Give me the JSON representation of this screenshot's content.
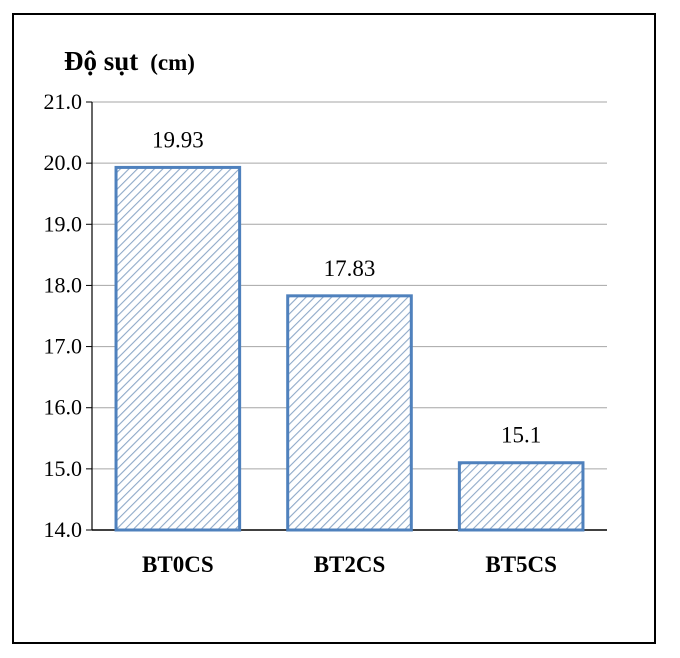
{
  "chart_data": {
    "type": "bar",
    "title": "Độ sụt",
    "title_unit": "(cm)",
    "categories": [
      "BT0CS",
      "BT2CS",
      "BT5CS"
    ],
    "values": [
      19.93,
      17.83,
      15.1
    ],
    "data_labels": [
      "19.93",
      "17.83",
      "15.1"
    ],
    "ylim": [
      14.0,
      21.0
    ],
    "yticks": [
      "14.0",
      "15.0",
      "16.0",
      "17.0",
      "18.0",
      "19.0",
      "20.0",
      "21.0"
    ],
    "grid": true,
    "legend": "none",
    "bar_fill": "diagonal-hatch",
    "bar_edge_color": "#4F81BD",
    "hatch_color": "#8EA9C8",
    "gridline_color": "#A6A6A6"
  }
}
